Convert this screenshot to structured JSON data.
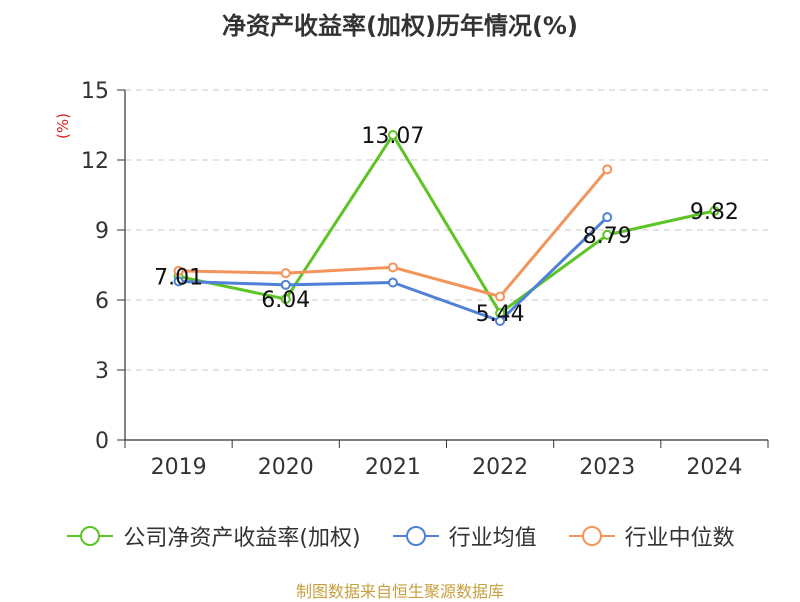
{
  "chart_data": {
    "type": "line",
    "title": "净资产收益率(加权)历年情况(%)",
    "ylabel": "(%)",
    "categories": [
      "2019",
      "2020",
      "2021",
      "2022",
      "2023",
      "2024"
    ],
    "ylim": [
      0,
      15
    ],
    "yticks": [
      0,
      3,
      6,
      9,
      12,
      15
    ],
    "grid": true,
    "legend_position": "bottom",
    "series": [
      {
        "name": "公司净资产收益率(加权)",
        "color": "#5cc424",
        "values": [
          7.01,
          6.04,
          13.07,
          5.44,
          8.79,
          9.82
        ],
        "labels": [
          "7.01",
          "6.04",
          "13.07",
          "5.44",
          "8.79",
          "9.82"
        ]
      },
      {
        "name": "行业均值",
        "color": "#4f81d6",
        "values": [
          6.8,
          6.65,
          6.75,
          5.1,
          9.55,
          null
        ]
      },
      {
        "name": "行业中位数",
        "color": "#f4935a",
        "values": [
          7.25,
          7.15,
          7.4,
          6.15,
          11.6,
          null
        ]
      }
    ]
  },
  "source": "制图数据来自恒生聚源数据库"
}
